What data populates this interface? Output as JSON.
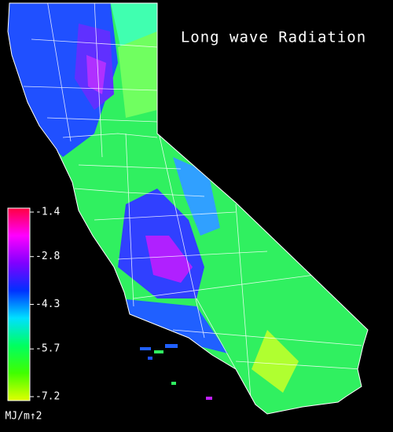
{
  "map": {
    "title": "Long wave Radiation",
    "colorbar": {
      "ticks": [
        -1.4,
        -2.8,
        -4.3,
        -5.7,
        -7.2
      ],
      "unit": "MJ/m↑2",
      "colors": [
        "#ff0040",
        "#ff00ff",
        "#8000ff",
        "#0030ff",
        "#00e0ff",
        "#00ff60",
        "#40ff00",
        "#e0ff00"
      ]
    }
  }
}
